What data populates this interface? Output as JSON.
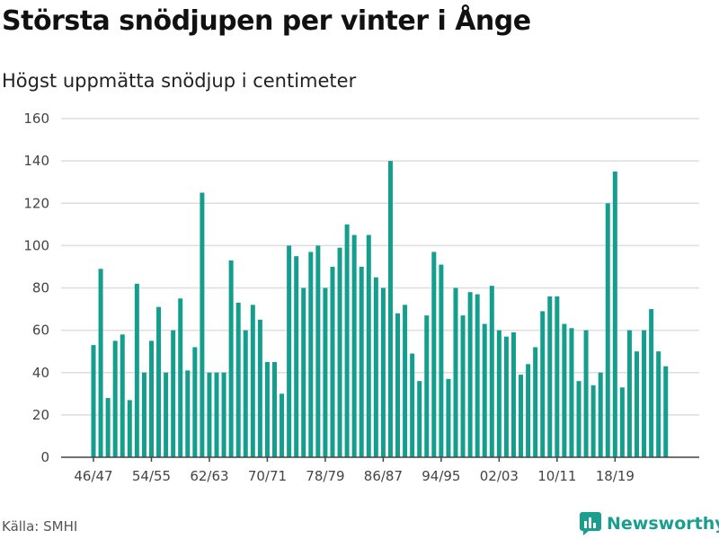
{
  "chart_data": {
    "type": "bar",
    "title": "Största snödjupen per vinter i Ånge",
    "subtitle": "Högst uppmätta snödjup i centimeter",
    "xlabel": "",
    "ylabel": "",
    "ylim": [
      0,
      160
    ],
    "yticks": [
      0,
      20,
      40,
      60,
      80,
      100,
      120,
      140,
      160
    ],
    "grid": true,
    "bar_color": "#139e8e",
    "categories": [
      "46/47",
      "47/48",
      "48/49",
      "49/50",
      "50/51",
      "51/52",
      "52/53",
      "53/54",
      "54/55",
      "55/56",
      "56/57",
      "57/58",
      "58/59",
      "59/60",
      "60/61",
      "61/62",
      "62/63",
      "63/64",
      "64/65",
      "65/66",
      "66/67",
      "67/68",
      "68/69",
      "69/70",
      "70/71",
      "71/72",
      "72/73",
      "73/74",
      "74/75",
      "75/76",
      "76/77",
      "77/78",
      "78/79",
      "79/80",
      "80/81",
      "81/82",
      "82/83",
      "83/84",
      "84/85",
      "85/86",
      "86/87",
      "87/88",
      "88/89",
      "89/90",
      "90/91",
      "91/92",
      "92/93",
      "93/94",
      "94/95",
      "95/96",
      "96/97",
      "97/98",
      "98/99",
      "99/00",
      "00/01",
      "01/02",
      "02/03",
      "03/04",
      "04/05",
      "05/06",
      "06/07",
      "07/08",
      "08/09",
      "09/10",
      "10/11",
      "11/12",
      "12/13",
      "13/14",
      "14/15",
      "15/16",
      "16/17",
      "17/18",
      "18/19",
      "19/20",
      "20/21",
      "21/22",
      "22/23",
      "23/24",
      "24/25",
      "25/26"
    ],
    "xtick_labels": [
      "46/47",
      "54/55",
      "62/63",
      "70/71",
      "78/79",
      "86/87",
      "94/95",
      "02/03",
      "10/11",
      "18/19"
    ],
    "values": [
      53,
      89,
      28,
      55,
      58,
      27,
      82,
      40,
      55,
      71,
      40,
      60,
      75,
      41,
      52,
      125,
      40,
      40,
      40,
      93,
      73,
      60,
      72,
      65,
      45,
      45,
      30,
      100,
      95,
      80,
      97,
      100,
      80,
      90,
      99,
      110,
      105,
      90,
      105,
      85,
      80,
      140,
      68,
      72,
      49,
      36,
      67,
      97,
      91,
      37,
      80,
      67,
      78,
      77,
      63,
      81,
      60,
      57,
      59,
      39,
      44,
      52,
      69,
      76,
      76,
      63,
      61,
      36,
      60,
      34,
      40,
      120,
      135,
      33,
      60,
      50,
      60,
      70,
      50,
      43
    ]
  },
  "source": "Källa: SMHI",
  "logo": {
    "text": "Newsworthy",
    "icon": "bar-chart-logo-icon",
    "color": "#1a9e8f"
  }
}
